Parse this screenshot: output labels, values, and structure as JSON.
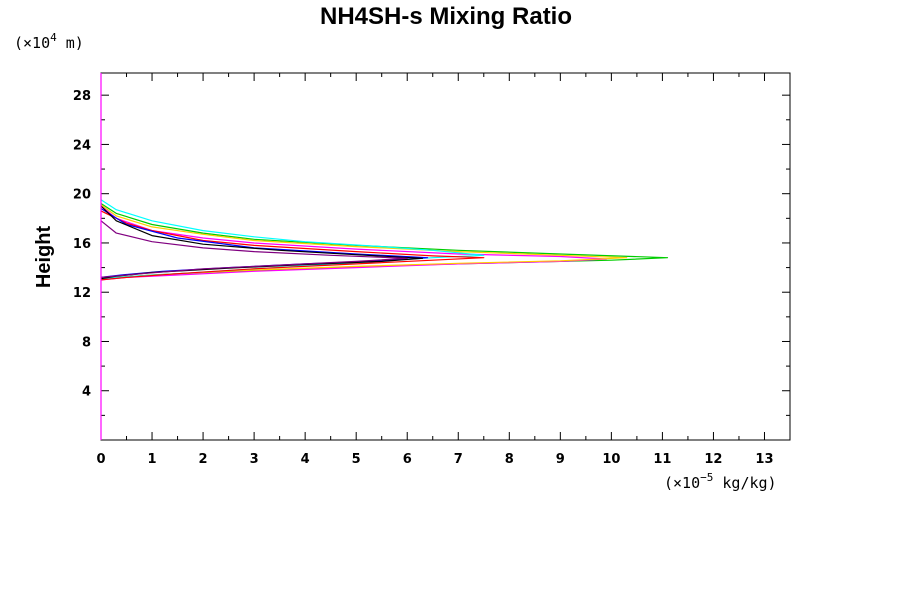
{
  "chart_data": {
    "type": "line",
    "title": "NH4SH-s Mixing Ratio",
    "xlabel": "",
    "ylabel": "Height",
    "x_unit": {
      "prefix": "(×10",
      "exp": "−5",
      "suffix": " kg/kg)"
    },
    "y_unit": {
      "prefix": "(×10",
      "exp": "4",
      "suffix": " m)"
    },
    "xlim": [
      0,
      13.5
    ],
    "ylim": [
      0,
      29.8
    ],
    "x_ticks": [
      0,
      1,
      2,
      3,
      4,
      5,
      6,
      7,
      8,
      9,
      10,
      11,
      12,
      13
    ],
    "y_ticks": [
      4,
      8,
      12,
      16,
      20,
      24,
      28
    ],
    "x_minor_step": 0.5,
    "y_minor_step": 2,
    "grid": false,
    "series": [
      {
        "color": "#00cc00",
        "points": [
          [
            0,
            19.2
          ],
          [
            0.3,
            18.4
          ],
          [
            1,
            17.5
          ],
          [
            2,
            16.8
          ],
          [
            3,
            16.3
          ],
          [
            5,
            15.8
          ],
          [
            7,
            15.4
          ],
          [
            9,
            15.1
          ],
          [
            11.1,
            14.8
          ],
          [
            10,
            14.6
          ],
          [
            8,
            14.4
          ],
          [
            6,
            14.2
          ],
          [
            4,
            13.9
          ],
          [
            2,
            13.6
          ],
          [
            1,
            13.4
          ],
          [
            0.3,
            13.2
          ],
          [
            0,
            13.1
          ]
        ]
      },
      {
        "color": "#ff00ff",
        "points": [
          [
            0,
            19.0
          ],
          [
            0.3,
            18.0
          ],
          [
            1,
            17.0
          ],
          [
            2,
            16.4
          ],
          [
            3,
            16.0
          ],
          [
            5,
            15.5
          ],
          [
            7,
            15.1
          ],
          [
            9,
            14.9
          ],
          [
            9.9,
            14.7
          ],
          [
            9,
            14.5
          ],
          [
            7,
            14.3
          ],
          [
            5,
            14.0
          ],
          [
            3,
            13.7
          ],
          [
            1.5,
            13.4
          ],
          [
            0.5,
            13.2
          ],
          [
            0,
            13.0
          ]
        ]
      },
      {
        "color": "#ffcc00",
        "points": [
          [
            0,
            19.1
          ],
          [
            0.3,
            18.2
          ],
          [
            1,
            17.3
          ],
          [
            2,
            16.7
          ],
          [
            3,
            16.2
          ],
          [
            5,
            15.7
          ],
          [
            7,
            15.3
          ],
          [
            9,
            15.0
          ],
          [
            10.3,
            14.8
          ],
          [
            9,
            14.55
          ],
          [
            7,
            14.35
          ],
          [
            5,
            14.1
          ],
          [
            3,
            13.8
          ],
          [
            1.5,
            13.5
          ],
          [
            0.5,
            13.25
          ],
          [
            0,
            13.1
          ]
        ]
      },
      {
        "color": "#00ffff",
        "points": [
          [
            0,
            19.5
          ],
          [
            0.3,
            18.7
          ],
          [
            1,
            17.8
          ],
          [
            2,
            17.0
          ],
          [
            3,
            16.5
          ],
          [
            4,
            16.1
          ],
          [
            5.5,
            15.7
          ],
          [
            6.5,
            15.4
          ],
          [
            7.5,
            15.0
          ],
          [
            6.5,
            14.8
          ],
          [
            5,
            14.4
          ],
          [
            3,
            13.9
          ],
          [
            1.5,
            13.5
          ],
          [
            0.5,
            13.25
          ],
          [
            0,
            13.1
          ]
        ]
      },
      {
        "color": "#ff0000",
        "points": [
          [
            0,
            18.6
          ],
          [
            0.5,
            17.6
          ],
          [
            1,
            17.0
          ],
          [
            2,
            16.2
          ],
          [
            3,
            15.8
          ],
          [
            5,
            15.3
          ],
          [
            6.5,
            14.95
          ],
          [
            7.5,
            14.8
          ],
          [
            6.5,
            14.6
          ],
          [
            5,
            14.3
          ],
          [
            3,
            13.9
          ],
          [
            1.5,
            13.5
          ],
          [
            0.5,
            13.2
          ],
          [
            0,
            13.0
          ]
        ]
      },
      {
        "color": "#0000ff",
        "points": [
          [
            0,
            18.8
          ],
          [
            0.5,
            17.5
          ],
          [
            1.5,
            16.4
          ],
          [
            3,
            15.6
          ],
          [
            5,
            15.1
          ],
          [
            6.4,
            14.8
          ],
          [
            5.5,
            14.55
          ],
          [
            4,
            14.3
          ],
          [
            2.5,
            14.0
          ],
          [
            1.2,
            13.7
          ],
          [
            0.4,
            13.4
          ],
          [
            0,
            13.2
          ]
        ]
      },
      {
        "color": "#000000",
        "points": [
          [
            0,
            19.0
          ],
          [
            0.3,
            17.8
          ],
          [
            1,
            16.6
          ],
          [
            2,
            15.9
          ],
          [
            3.5,
            15.4
          ],
          [
            5,
            15.05
          ],
          [
            6.3,
            14.75
          ],
          [
            5.5,
            14.5
          ],
          [
            4,
            14.25
          ],
          [
            2.5,
            13.95
          ],
          [
            1,
            13.6
          ],
          [
            0.3,
            13.3
          ],
          [
            0,
            13.1
          ]
        ]
      },
      {
        "color": "#800080",
        "points": [
          [
            0,
            17.8
          ],
          [
            0.3,
            16.8
          ],
          [
            1,
            16.1
          ],
          [
            2,
            15.6
          ],
          [
            3,
            15.3
          ],
          [
            4.5,
            15.0
          ],
          [
            6,
            14.75
          ],
          [
            5,
            14.5
          ],
          [
            3.5,
            14.2
          ],
          [
            2,
            13.9
          ],
          [
            0.8,
            13.5
          ],
          [
            0,
            13.2
          ]
        ]
      }
    ]
  }
}
